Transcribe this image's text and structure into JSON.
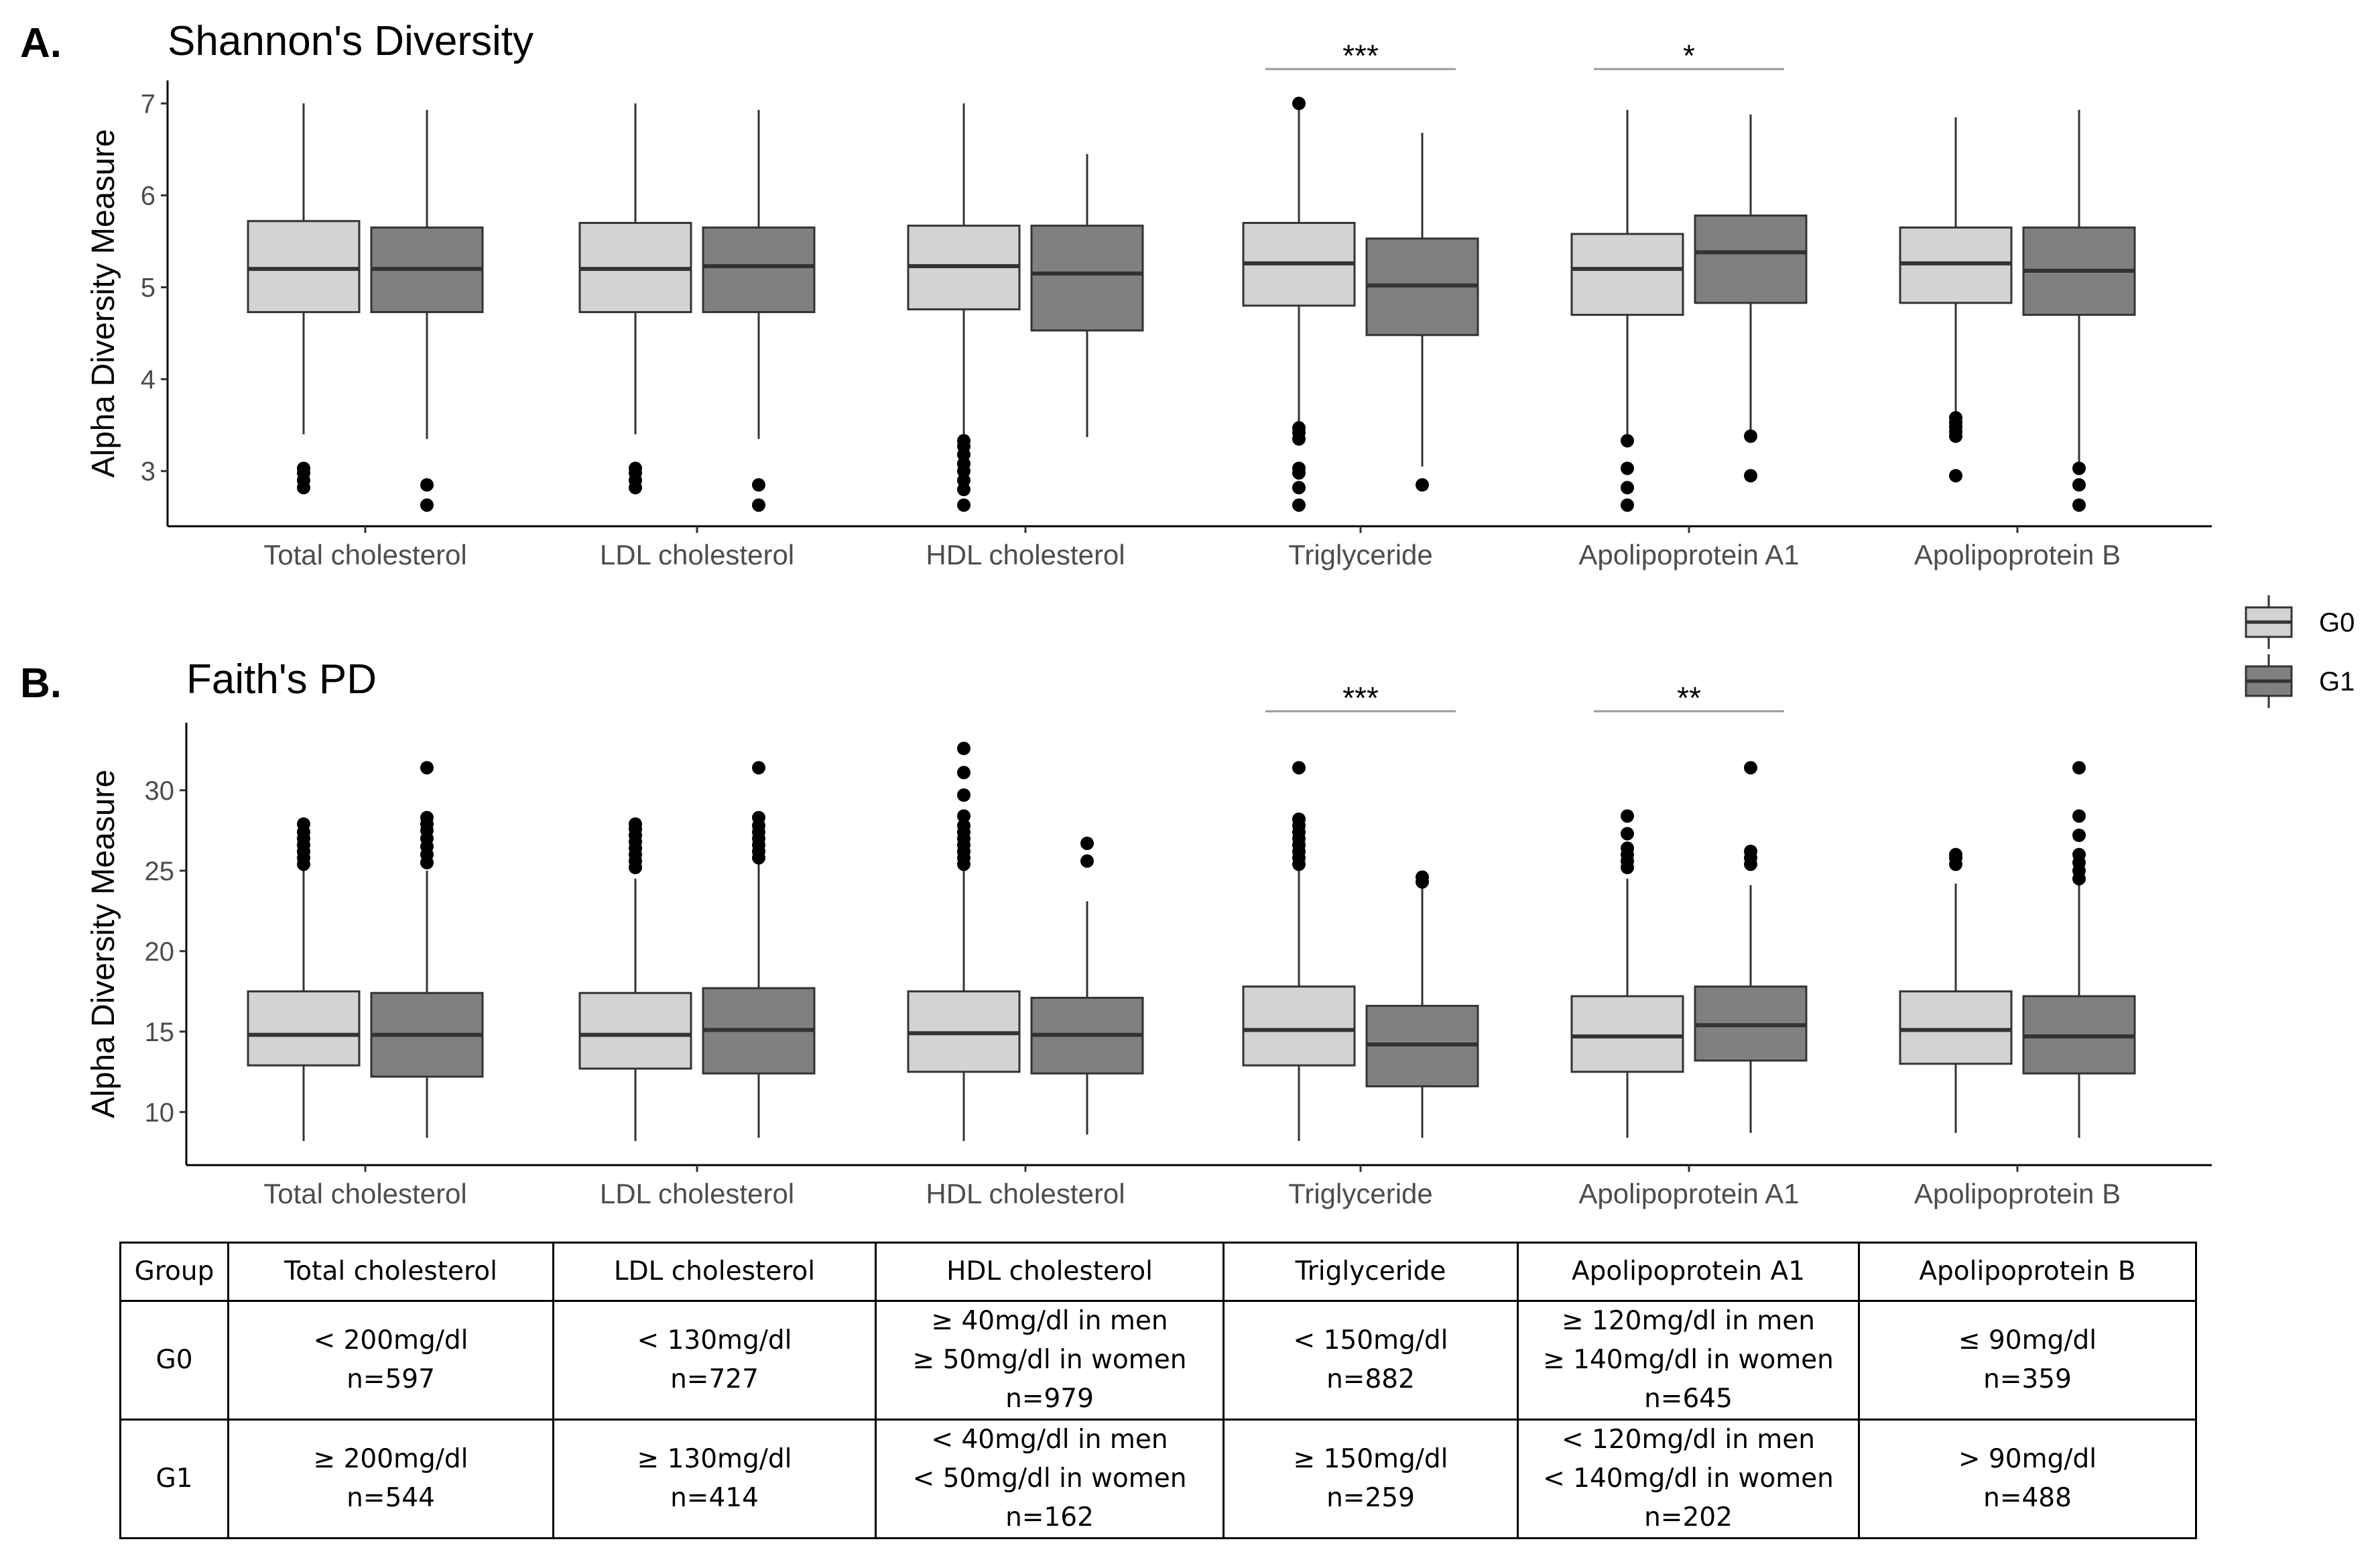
{
  "figure": {
    "legend": {
      "items": [
        {
          "label": "G0",
          "color": "#d3d3d3"
        },
        {
          "label": "G1",
          "color": "#808080"
        }
      ]
    },
    "colors": {
      "g0": "#d3d3d3",
      "g1": "#808080",
      "box_edge": "#333333",
      "median": "#333333",
      "outlier": "#000000",
      "axis": "#000000",
      "sig_line": "#999999"
    }
  },
  "chart_data": [
    {
      "type": "box",
      "panel_label": "A.",
      "title": "Shannon's Diversity",
      "ylabel": "Alpha Diversity Measure",
      "xlabel": "",
      "ylim": [
        2.4,
        7.25
      ],
      "yticks": [
        3,
        4,
        5,
        6,
        7
      ],
      "categories": [
        "Total cholesterol",
        "LDL cholesterol",
        "HDL cholesterol",
        "Triglyceride",
        "Apolipoprotein A1",
        "Apolipoprotein B"
      ],
      "series": [
        {
          "name": "G0",
          "boxes": [
            {
              "whisker_low": 3.4,
              "q1": 4.73,
              "median": 5.2,
              "q3": 5.72,
              "whisker_high": 7.0,
              "outliers": [
                3.03,
                2.98,
                2.9,
                2.82
              ]
            },
            {
              "whisker_low": 3.4,
              "q1": 4.73,
              "median": 5.2,
              "q3": 5.7,
              "whisker_high": 7.0,
              "outliers": [
                3.03,
                2.98,
                2.9,
                2.82
              ]
            },
            {
              "whisker_low": 3.4,
              "q1": 4.76,
              "median": 5.23,
              "q3": 5.67,
              "whisker_high": 7.0,
              "outliers": [
                3.33,
                3.27,
                3.18,
                3.08,
                3.0,
                2.9,
                2.8,
                2.63
              ]
            },
            {
              "whisker_low": 3.5,
              "q1": 4.8,
              "median": 5.26,
              "q3": 5.7,
              "whisker_high": 6.95,
              "outliers": [
                7.0,
                3.47,
                3.42,
                3.35,
                3.03,
                2.98,
                2.82,
                2.63
              ]
            },
            {
              "whisker_low": 3.4,
              "q1": 4.7,
              "median": 5.2,
              "q3": 5.58,
              "whisker_high": 6.93,
              "outliers": [
                3.33,
                3.03,
                2.82,
                2.63
              ]
            },
            {
              "whisker_low": 3.6,
              "q1": 4.83,
              "median": 5.26,
              "q3": 5.65,
              "whisker_high": 6.85,
              "outliers": [
                3.58,
                3.53,
                3.48,
                3.43,
                3.38,
                2.95
              ]
            }
          ]
        },
        {
          "name": "G1",
          "boxes": [
            {
              "whisker_low": 3.35,
              "q1": 4.73,
              "median": 5.2,
              "q3": 5.65,
              "whisker_high": 6.93,
              "outliers": [
                2.85,
                2.63
              ]
            },
            {
              "whisker_low": 3.35,
              "q1": 4.73,
              "median": 5.23,
              "q3": 5.65,
              "whisker_high": 6.93,
              "outliers": [
                2.85,
                2.63
              ]
            },
            {
              "whisker_low": 3.37,
              "q1": 4.53,
              "median": 5.15,
              "q3": 5.67,
              "whisker_high": 6.45,
              "outliers": []
            },
            {
              "whisker_low": 3.05,
              "q1": 4.48,
              "median": 5.02,
              "q3": 5.53,
              "whisker_high": 6.68,
              "outliers": [
                2.85
              ]
            },
            {
              "whisker_low": 3.4,
              "q1": 4.83,
              "median": 5.38,
              "q3": 5.78,
              "whisker_high": 6.88,
              "outliers": [
                3.38,
                2.95
              ]
            },
            {
              "whisker_low": 3.05,
              "q1": 4.7,
              "median": 5.18,
              "q3": 5.65,
              "whisker_high": 6.93,
              "outliers": [
                3.03,
                2.85,
                2.63
              ]
            }
          ]
        }
      ],
      "annotations": [
        {
          "category": "Triglyceride",
          "text": "***"
        },
        {
          "category": "Apolipoprotein A1",
          "text": "*"
        }
      ]
    },
    {
      "type": "box",
      "panel_label": "B.",
      "title": "Faith's PD",
      "ylabel": "Alpha Diversity Measure",
      "xlabel": "",
      "ylim": [
        6.7,
        34.2
      ],
      "yticks": [
        10,
        15,
        20,
        25,
        30
      ],
      "categories": [
        "Total cholesterol",
        "LDL cholesterol",
        "HDL cholesterol",
        "Triglyceride",
        "Apolipoprotein A1",
        "Apolipoprotein B"
      ],
      "series": [
        {
          "name": "G0",
          "boxes": [
            {
              "whisker_low": 8.2,
              "q1": 12.9,
              "median": 14.8,
              "q3": 17.5,
              "whisker_high": 25.0,
              "outliers": [
                25.4,
                25.8,
                26.2,
                26.6,
                27.0,
                27.4,
                27.9
              ]
            },
            {
              "whisker_low": 8.2,
              "q1": 12.7,
              "median": 14.8,
              "q3": 17.4,
              "whisker_high": 24.5,
              "outliers": [
                25.2,
                25.6,
                26.0,
                26.4,
                26.8,
                27.2,
                27.6,
                27.9
              ]
            },
            {
              "whisker_low": 8.2,
              "q1": 12.5,
              "median": 14.9,
              "q3": 17.5,
              "whisker_high": 25.0,
              "outliers": [
                25.4,
                25.8,
                26.2,
                26.6,
                27.0,
                27.4,
                27.8,
                28.4,
                29.7,
                31.1,
                32.6
              ]
            },
            {
              "whisker_low": 8.2,
              "q1": 12.9,
              "median": 15.1,
              "q3": 17.8,
              "whisker_high": 25.0,
              "outliers": [
                25.4,
                25.8,
                26.2,
                26.6,
                27.0,
                27.4,
                27.8,
                28.2,
                31.4
              ]
            },
            {
              "whisker_low": 8.4,
              "q1": 12.5,
              "median": 14.7,
              "q3": 17.2,
              "whisker_high": 24.5,
              "outliers": [
                25.2,
                25.6,
                26.0,
                26.4,
                27.3,
                28.4
              ]
            },
            {
              "whisker_low": 8.7,
              "q1": 13.0,
              "median": 15.1,
              "q3": 17.5,
              "whisker_high": 24.2,
              "outliers": [
                25.4,
                25.8,
                26.0
              ]
            }
          ]
        },
        {
          "name": "G1",
          "boxes": [
            {
              "whisker_low": 8.4,
              "q1": 12.2,
              "median": 14.8,
              "q3": 17.4,
              "whisker_high": 25.0,
              "outliers": [
                25.5,
                26.0,
                26.5,
                27.0,
                27.5,
                27.9,
                28.3,
                31.4
              ]
            },
            {
              "whisker_low": 8.4,
              "q1": 12.4,
              "median": 15.1,
              "q3": 17.7,
              "whisker_high": 25.5,
              "outliers": [
                25.8,
                26.2,
                26.6,
                27.0,
                27.4,
                27.8,
                28.3,
                31.4
              ]
            },
            {
              "whisker_low": 8.6,
              "q1": 12.4,
              "median": 14.8,
              "q3": 17.1,
              "whisker_high": 23.1,
              "outliers": [
                25.6,
                26.7
              ]
            },
            {
              "whisker_low": 8.4,
              "q1": 11.6,
              "median": 14.2,
              "q3": 16.6,
              "whisker_high": 24.0,
              "outliers": [
                24.3,
                24.6
              ]
            },
            {
              "whisker_low": 8.7,
              "q1": 13.2,
              "median": 15.4,
              "q3": 17.8,
              "whisker_high": 24.1,
              "outliers": [
                25.4,
                25.8,
                26.2,
                31.4
              ]
            },
            {
              "whisker_low": 8.4,
              "q1": 12.4,
              "median": 14.7,
              "q3": 17.2,
              "whisker_high": 24.2,
              "outliers": [
                24.5,
                25.0,
                25.5,
                26.0,
                27.2,
                28.4,
                31.4
              ]
            }
          ]
        }
      ],
      "annotations": [
        {
          "category": "Triglyceride",
          "text": "***"
        },
        {
          "category": "Apolipoprotein A1",
          "text": "**"
        }
      ]
    }
  ],
  "table": {
    "headers": [
      "Group",
      "Total cholesterol",
      "LDL cholesterol",
      "HDL cholesterol",
      "Triglyceride",
      "Apolipoprotein A1",
      "Apolipoprotein B"
    ],
    "rows": [
      {
        "group": "G0",
        "cells": [
          [
            "< 200mg/dl",
            "n=597"
          ],
          [
            "< 130mg/dl",
            "n=727"
          ],
          [
            "≥ 40mg/dl in men",
            "≥ 50mg/dl in women",
            "n=979"
          ],
          [
            "< 150mg/dl",
            "n=882"
          ],
          [
            "≥ 120mg/dl in men",
            "≥ 140mg/dl in women",
            "n=645"
          ],
          [
            "≤ 90mg/dl",
            "n=359"
          ]
        ]
      },
      {
        "group": "G1",
        "cells": [
          [
            "≥ 200mg/dl",
            "n=544"
          ],
          [
            "≥ 130mg/dl",
            "n=414"
          ],
          [
            "< 40mg/dl in men",
            "< 50mg/dl in women",
            "n=162"
          ],
          [
            "≥ 150mg/dl",
            "n=259"
          ],
          [
            "< 120mg/dl in men",
            "< 140mg/dl in women",
            "n=202"
          ],
          [
            "> 90mg/dl",
            "n=488"
          ]
        ]
      }
    ]
  }
}
